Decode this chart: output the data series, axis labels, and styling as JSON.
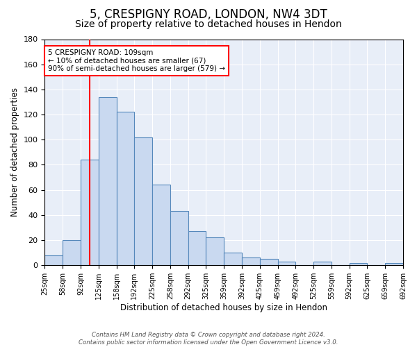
{
  "title1": "5, CRESPIGNY ROAD, LONDON, NW4 3DT",
  "title2": "Size of property relative to detached houses in Hendon",
  "xlabel": "Distribution of detached houses by size in Hendon",
  "ylabel": "Number of detached properties",
  "bar_values": [
    8,
    20,
    84,
    134,
    122,
    102,
    64,
    43,
    27,
    22,
    10,
    6,
    5,
    3,
    0,
    3,
    0,
    2,
    0,
    2
  ],
  "bin_labels": [
    "25sqm",
    "58sqm",
    "92sqm",
    "125sqm",
    "158sqm",
    "192sqm",
    "225sqm",
    "258sqm",
    "292sqm",
    "325sqm",
    "359sqm",
    "392sqm",
    "425sqm",
    "459sqm",
    "492sqm",
    "525sqm",
    "559sqm",
    "592sqm",
    "625sqm",
    "659sqm",
    "692sqm"
  ],
  "bar_color": "#c9d9f0",
  "bar_edge_color": "#5588bb",
  "vline_bin": 2.45,
  "vline_color": "red",
  "annotation_text": "5 CRESPIGNY ROAD: 109sqm\n← 10% of detached houses are smaller (67)\n90% of semi-detached houses are larger (579) →",
  "annotation_box_color": "white",
  "annotation_box_edge": "red",
  "ylim": [
    0,
    180
  ],
  "yticks": [
    0,
    20,
    40,
    60,
    80,
    100,
    120,
    140,
    160,
    180
  ],
  "bg_color": "#e8eef8",
  "footer_text": "Contains HM Land Registry data © Crown copyright and database right 2024.\nContains public sector information licensed under the Open Government Licence v3.0.",
  "title1_fontsize": 12,
  "title2_fontsize": 10
}
